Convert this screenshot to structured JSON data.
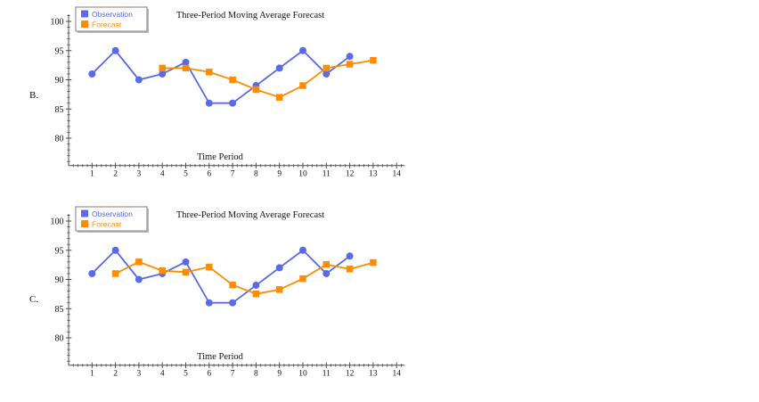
{
  "labels": {
    "chart_b": "B.",
    "chart_c": "C."
  },
  "colors": {
    "observation": "#5a69e6",
    "forecast": "#ff8c00",
    "axis": "#4a4a4a",
    "text": "#111111",
    "legend_border": "#949494",
    "legend_shadow": "#b9b9b9",
    "background": "#ffffff"
  },
  "chart_data": [
    {
      "id": "chart-b",
      "type": "line",
      "title": "Three-Period Moving Average Forecast",
      "xlabel": "Time Period",
      "x_ticks": [
        1,
        2,
        3,
        4,
        5,
        6,
        7,
        8,
        9,
        10,
        11,
        12,
        13,
        14
      ],
      "y_ticks": [
        80,
        85,
        90,
        95,
        100
      ],
      "xlim": [
        0,
        14.35
      ],
      "ylim": [
        75.3,
        101.2
      ],
      "grid": false,
      "legend_position": "top-left",
      "legend_items": [
        "Observation",
        "Forecast"
      ],
      "series": [
        {
          "name": "Observation",
          "marker": "circle",
          "color": "#5a69e6",
          "x": [
            1,
            2,
            3,
            4,
            5,
            6,
            7,
            8,
            9,
            10,
            11,
            12
          ],
          "y": [
            91,
            95,
            90,
            91,
            93,
            86,
            86,
            89,
            92,
            95,
            91,
            94
          ]
        },
        {
          "name": "Forecast",
          "marker": "square",
          "color": "#ff8c00",
          "x": [
            4,
            5,
            6,
            7,
            8,
            9,
            10,
            11,
            12,
            13
          ],
          "y": [
            92,
            92,
            91.33,
            90,
            88.33,
            87,
            89,
            92,
            92.67,
            93.33
          ]
        }
      ]
    },
    {
      "id": "chart-c",
      "type": "line",
      "title": "Three-Period Moving Average Forecast",
      "xlabel": "Time Period",
      "x_ticks": [
        1,
        2,
        3,
        4,
        5,
        6,
        7,
        8,
        9,
        10,
        11,
        12,
        13,
        14
      ],
      "y_ticks": [
        80,
        85,
        90,
        95,
        100
      ],
      "xlim": [
        0,
        14.35
      ],
      "ylim": [
        75.3,
        101.2
      ],
      "grid": false,
      "legend_position": "top-left",
      "legend_items": [
        "Observation",
        "Forecast"
      ],
      "series": [
        {
          "name": "Observation",
          "marker": "circle",
          "color": "#5a69e6",
          "x": [
            1,
            2,
            3,
            4,
            5,
            6,
            7,
            8,
            9,
            10,
            11,
            12
          ],
          "y": [
            91,
            95,
            90,
            91,
            93,
            86,
            86,
            89,
            92,
            95,
            91,
            94
          ]
        },
        {
          "name": "Forecast",
          "marker": "square",
          "color": "#ff8c00",
          "x": [
            2,
            3,
            4,
            5,
            6,
            7,
            8,
            9,
            10,
            11,
            12,
            13
          ],
          "y": [
            91,
            93,
            91.5,
            91.25,
            92.13,
            89.06,
            87.53,
            88.27,
            90.13,
            92.57,
            91.78,
            92.89
          ]
        }
      ]
    }
  ]
}
